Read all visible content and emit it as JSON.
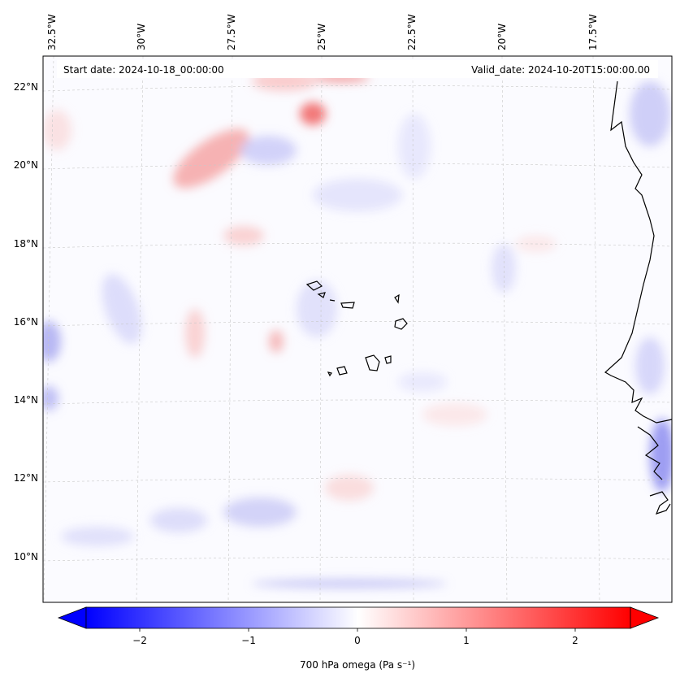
{
  "map": {
    "start_date": "Start date: 2024-10-18_00:00:00",
    "valid_date": "Valid_date: 2024-10-20T15:00:00.00",
    "lon_labels": [
      "32.5°W",
      "30°W",
      "27.5°W",
      "25°W",
      "22.5°W",
      "20°W",
      "17.5°W"
    ],
    "lat_labels": [
      "22°N",
      "20°N",
      "18°N",
      "16°N",
      "14°N",
      "12°N",
      "10°N"
    ],
    "gridlines": true,
    "field_note_colors": {
      "negative": "#0000ff",
      "zero": "#ffffff",
      "positive": "#ff0000"
    }
  },
  "colorbar": {
    "label": "700 hPa omega (Pa s⁻¹)",
    "ticks": [
      "−2",
      "−1",
      "0",
      "1",
      "2"
    ],
    "range": [
      -2.7,
      2.7
    ],
    "extend": "both",
    "cmap": "bwr"
  }
}
